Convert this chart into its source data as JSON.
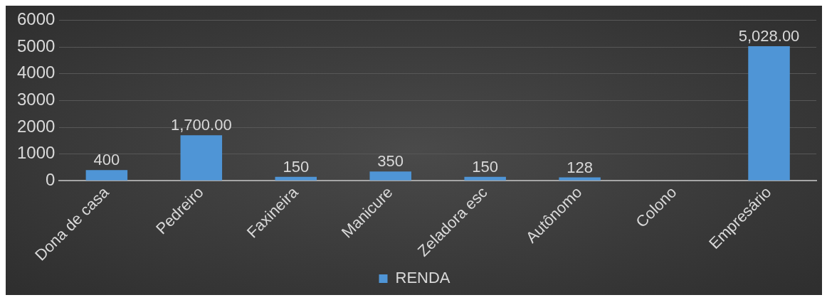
{
  "chart_data": {
    "type": "bar",
    "categories": [
      "Dona de casa",
      "Pedreiro",
      "Faxineira",
      "Manicure",
      "Zeladora esc",
      "Autônomo",
      "Colono",
      "Empresário"
    ],
    "series": [
      {
        "name": "RENDA",
        "color": "#4f95d6",
        "values": [
          400,
          1700,
          150,
          350,
          150,
          128,
          null,
          5028
        ],
        "value_labels": [
          "400",
          "1,700.00",
          "150",
          "350",
          "150",
          "128",
          null,
          "5,028.00"
        ]
      }
    ],
    "ylim": [
      0,
      6000
    ],
    "yticks": [
      0,
      1000,
      2000,
      3000,
      4000,
      5000,
      6000
    ],
    "grid": "y",
    "legend": "bottom"
  }
}
